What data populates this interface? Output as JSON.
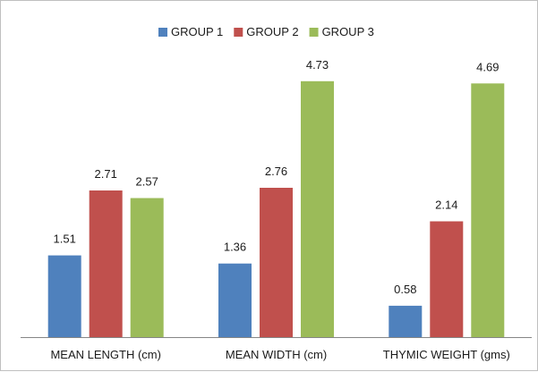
{
  "chart_data": {
    "type": "bar",
    "title": "",
    "xlabel": "",
    "ylabel": "",
    "categories": [
      "MEAN LENGTH (cm)",
      "MEAN WIDTH (cm)",
      "THYMIC WEIGHT (gms)"
    ],
    "series": [
      {
        "name": "GROUP 1",
        "values": [
          1.51,
          1.36,
          0.58
        ],
        "color": "#4f81bd"
      },
      {
        "name": "GROUP 2",
        "values": [
          2.71,
          2.76,
          2.14
        ],
        "color": "#c0504d"
      },
      {
        "name": "GROUP 3",
        "values": [
          2.57,
          4.73,
          4.69
        ],
        "color": "#9bbb59"
      }
    ],
    "value_labels": [
      [
        "1.51",
        "1.36",
        "0.58"
      ],
      [
        "2.71",
        "2.76",
        "2.14"
      ],
      [
        "2.57",
        "4.73",
        "4.69"
      ]
    ],
    "ylim": [
      0,
      5
    ],
    "grid": false,
    "y_axis_visible": false,
    "legend_position": "top"
  }
}
